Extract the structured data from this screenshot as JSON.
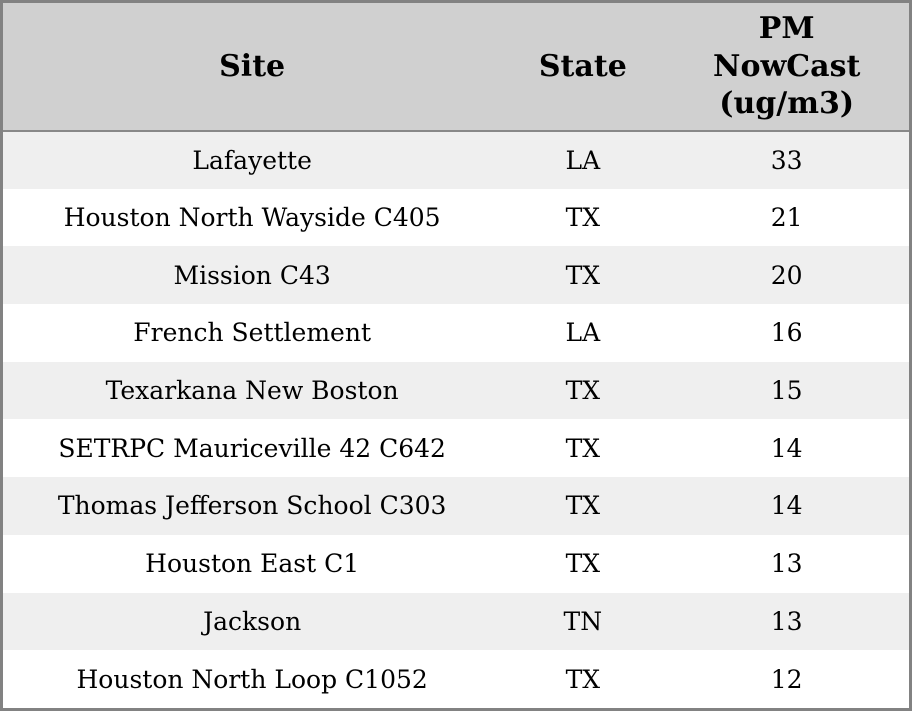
{
  "colors": {
    "frame_border": "#828282",
    "header_background": "#d0d0d0",
    "header_divider": "#888888",
    "row_stripe": "#efefef",
    "row_plain": "#ffffff",
    "text": "#000000"
  },
  "chart_data": {
    "type": "table",
    "columns": [
      "Site",
      "State",
      "PM NowCast (ug/m3)"
    ],
    "rows": [
      [
        "Lafayette",
        "LA",
        "33"
      ],
      [
        "Houston North Wayside C405",
        "TX",
        "21"
      ],
      [
        "Mission C43",
        "TX",
        "20"
      ],
      [
        "French Settlement",
        "LA",
        "16"
      ],
      [
        "Texarkana New Boston",
        "TX",
        "15"
      ],
      [
        "SETRPC Mauriceville 42 C642",
        "TX",
        "14"
      ],
      [
        "Thomas Jefferson School C303",
        "TX",
        "14"
      ],
      [
        "Houston East C1",
        "TX",
        "13"
      ],
      [
        "Jackson",
        "TN",
        "13"
      ],
      [
        "Houston North Loop C1052",
        "TX",
        "12"
      ]
    ],
    "layout": {
      "striped": true,
      "header_lines_pm_column": 3
    }
  }
}
